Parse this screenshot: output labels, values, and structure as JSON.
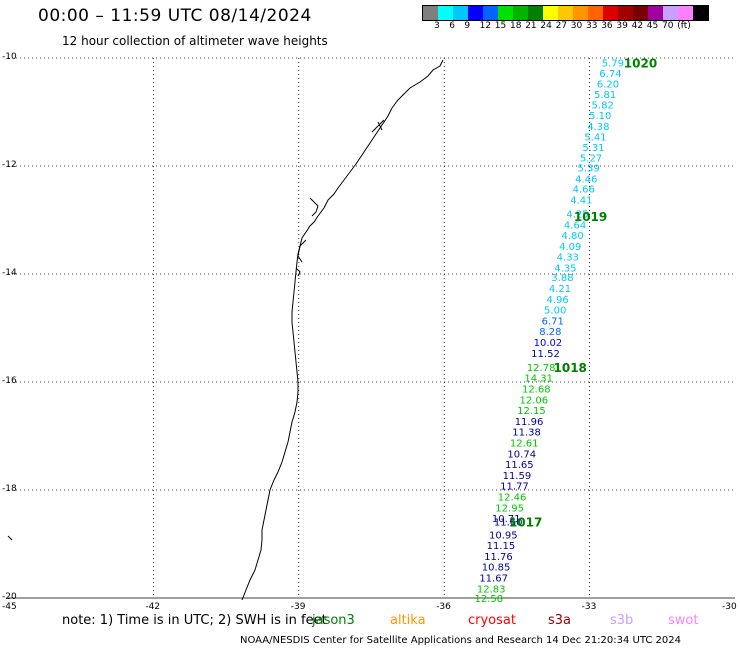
{
  "header": {
    "title": "00:00 – 11:59 UTC 08/14/2024",
    "subtitle": "12 hour collection of altimeter wave heights"
  },
  "legend": {
    "colors": [
      "#7f7f7f",
      "#00ffff",
      "#00c8ff",
      "#0000ff",
      "#0064ff",
      "#00e000",
      "#00b400",
      "#008000",
      "#ffff00",
      "#ffc800",
      "#ff9600",
      "#ff6400",
      "#dc0000",
      "#a00000",
      "#780000",
      "#a000a0",
      "#c8a0ff",
      "#ff80ff",
      "#000000"
    ],
    "labels": [
      "3",
      "6",
      "9",
      "12",
      "15",
      "18",
      "21",
      "24",
      "27",
      "30",
      "33",
      "36",
      "39",
      "42",
      "45",
      "70",
      "(ft)"
    ]
  },
  "axes": {
    "lat_labels": [
      "-10",
      "-12",
      "-14",
      "-16",
      "-18",
      "-20"
    ],
    "lon_labels": [
      "-45",
      "-42",
      "-39",
      "-36",
      "-33",
      "-30"
    ]
  },
  "track": {
    "points": [
      {
        "lat": -10.08,
        "lon": -32.52,
        "swh": "5.79",
        "color": "#00c8ff"
      },
      {
        "lat": -10.28,
        "lon": -32.57,
        "swh": "6.74",
        "color": "#00c8ff"
      },
      {
        "lat": -10.47,
        "lon": -32.62,
        "swh": "6.20",
        "color": "#00c8ff"
      },
      {
        "lat": -10.67,
        "lon": -32.68,
        "swh": "5.81",
        "color": "#00c8ff"
      },
      {
        "lat": -10.86,
        "lon": -32.73,
        "swh": "5.82",
        "color": "#00c8ff"
      },
      {
        "lat": -11.06,
        "lon": -32.78,
        "swh": "5.10",
        "color": "#00c8ff"
      },
      {
        "lat": -11.26,
        "lon": -32.82,
        "swh": "4.38",
        "color": "#00c8ff"
      },
      {
        "lat": -11.45,
        "lon": -32.88,
        "swh": "5.41",
        "color": "#00c8ff"
      },
      {
        "lat": -11.65,
        "lon": -32.92,
        "swh": "5.31",
        "color": "#00c8ff"
      },
      {
        "lat": -11.84,
        "lon": -32.97,
        "swh": "5.27",
        "color": "#00c8ff"
      },
      {
        "lat": -12.03,
        "lon": -33.02,
        "swh": "5.39",
        "color": "#00c8ff"
      },
      {
        "lat": -12.23,
        "lon": -33.07,
        "swh": "4.46",
        "color": "#00c8ff"
      },
      {
        "lat": -12.42,
        "lon": -33.12,
        "swh": "4.66",
        "color": "#00c8ff"
      },
      {
        "lat": -12.62,
        "lon": -33.17,
        "swh": "4.41",
        "color": "#00c8ff"
      },
      {
        "lat": -12.88,
        "lon": -33.25,
        "swh": "4.25",
        "color": "#00c8ff"
      },
      {
        "lat": -13.08,
        "lon": -33.3,
        "swh": "4.64",
        "color": "#00c8ff"
      },
      {
        "lat": -13.28,
        "lon": -33.35,
        "swh": "4.80",
        "color": "#00c8ff"
      },
      {
        "lat": -13.48,
        "lon": -33.4,
        "swh": "4.09",
        "color": "#00c8ff"
      },
      {
        "lat": -13.68,
        "lon": -33.45,
        "swh": "4.33",
        "color": "#00c8ff"
      },
      {
        "lat": -13.88,
        "lon": -33.5,
        "swh": "4.35",
        "color": "#00c8ff"
      },
      {
        "lat": -14.06,
        "lon": -33.56,
        "swh": "3.88",
        "color": "#00c8ff"
      },
      {
        "lat": -14.26,
        "lon": -33.61,
        "swh": "4.21",
        "color": "#00c8ff"
      },
      {
        "lat": -14.46,
        "lon": -33.66,
        "swh": "4.96",
        "color": "#00c8ff"
      },
      {
        "lat": -14.66,
        "lon": -33.71,
        "swh": "5.00",
        "color": "#00c8ff"
      },
      {
        "lat": -14.86,
        "lon": -33.76,
        "swh": "6.71",
        "color": "#0064ff"
      },
      {
        "lat": -15.06,
        "lon": -33.81,
        "swh": "8.28",
        "color": "#0064ff"
      },
      {
        "lat": -15.26,
        "lon": -33.86,
        "swh": "10.02",
        "color": "#0000ff"
      },
      {
        "lat": -15.46,
        "lon": -33.91,
        "swh": "11.52",
        "color": "#0000a0"
      },
      {
        "lat": -15.72,
        "lon": -34.0,
        "swh": "12.78",
        "color": "#00c800"
      },
      {
        "lat": -15.92,
        "lon": -34.05,
        "swh": "14.31",
        "color": "#00c800"
      },
      {
        "lat": -16.12,
        "lon": -34.1,
        "swh": "12.68",
        "color": "#00c800"
      },
      {
        "lat": -16.32,
        "lon": -34.15,
        "swh": "12.06",
        "color": "#00c800"
      },
      {
        "lat": -16.52,
        "lon": -34.2,
        "swh": "12.15",
        "color": "#00c800"
      },
      {
        "lat": -16.72,
        "lon": -34.25,
        "swh": "11.96",
        "color": "#0000a0"
      },
      {
        "lat": -16.92,
        "lon": -34.3,
        "swh": "11.38",
        "color": "#0000a0"
      },
      {
        "lat": -17.12,
        "lon": -34.35,
        "swh": "12.61",
        "color": "#00c800"
      },
      {
        "lat": -17.32,
        "lon": -34.4,
        "swh": "10.74",
        "color": "#0000a0"
      },
      {
        "lat": -17.52,
        "lon": -34.45,
        "swh": "11.65",
        "color": "#0000a0"
      },
      {
        "lat": -17.72,
        "lon": -34.5,
        "swh": "11.59",
        "color": "#0000a0"
      },
      {
        "lat": -17.92,
        "lon": -34.55,
        "swh": "11.77",
        "color": "#0000a0"
      },
      {
        "lat": -18.12,
        "lon": -34.6,
        "swh": "12.46",
        "color": "#00c800"
      },
      {
        "lat": -18.32,
        "lon": -34.65,
        "swh": "12.95",
        "color": "#00c800"
      },
      {
        "lat": -18.52,
        "lon": -34.72,
        "swh": "10.71",
        "color": "#0000a0"
      },
      {
        "lat": -18.58,
        "lon": -34.68,
        "swh": "11.60",
        "color": "#0000a0"
      },
      {
        "lat": -18.82,
        "lon": -34.78,
        "swh": "10.95",
        "color": "#0000a0"
      },
      {
        "lat": -19.02,
        "lon": -34.83,
        "swh": "11.15",
        "color": "#0000a0"
      },
      {
        "lat": -19.22,
        "lon": -34.88,
        "swh": "11.76",
        "color": "#0000a0"
      },
      {
        "lat": -19.42,
        "lon": -34.93,
        "swh": "10.85",
        "color": "#0000a0"
      },
      {
        "lat": -19.62,
        "lon": -34.98,
        "swh": "11.67",
        "color": "#0000a0"
      },
      {
        "lat": -19.82,
        "lon": -35.03,
        "swh": "12.83",
        "color": "#00c800"
      },
      {
        "lat": -20.0,
        "lon": -35.08,
        "swh": "12.58",
        "color": "#00c800"
      }
    ],
    "pressure_labels": [
      {
        "lat": -10.08,
        "lon": -31.95,
        "text": "1020"
      },
      {
        "lat": -12.93,
        "lon": -32.98,
        "text": "1019"
      },
      {
        "lat": -15.72,
        "lon": -33.4,
        "text": "1018"
      },
      {
        "lat": -18.58,
        "lon": -34.32,
        "text": "1017"
      }
    ]
  },
  "footer": {
    "note": "note:  1) Time is in UTC; 2) SWH is in feet",
    "missions": [
      {
        "name": "jason3",
        "color": "#008000"
      },
      {
        "name": "altika",
        "color": "#ff9600"
      },
      {
        "name": "cryosat",
        "color": "#ff0000"
      },
      {
        "name": "s3a",
        "color": "#a00000"
      },
      {
        "name": "s3b",
        "color": "#c8a0ff"
      },
      {
        "name": "swot",
        "color": "#ff80ff"
      }
    ],
    "credit": "NOAA/NESDIS Center for Satellite Applications and Research   14 Dec 21:20:34 UTC 2024"
  }
}
